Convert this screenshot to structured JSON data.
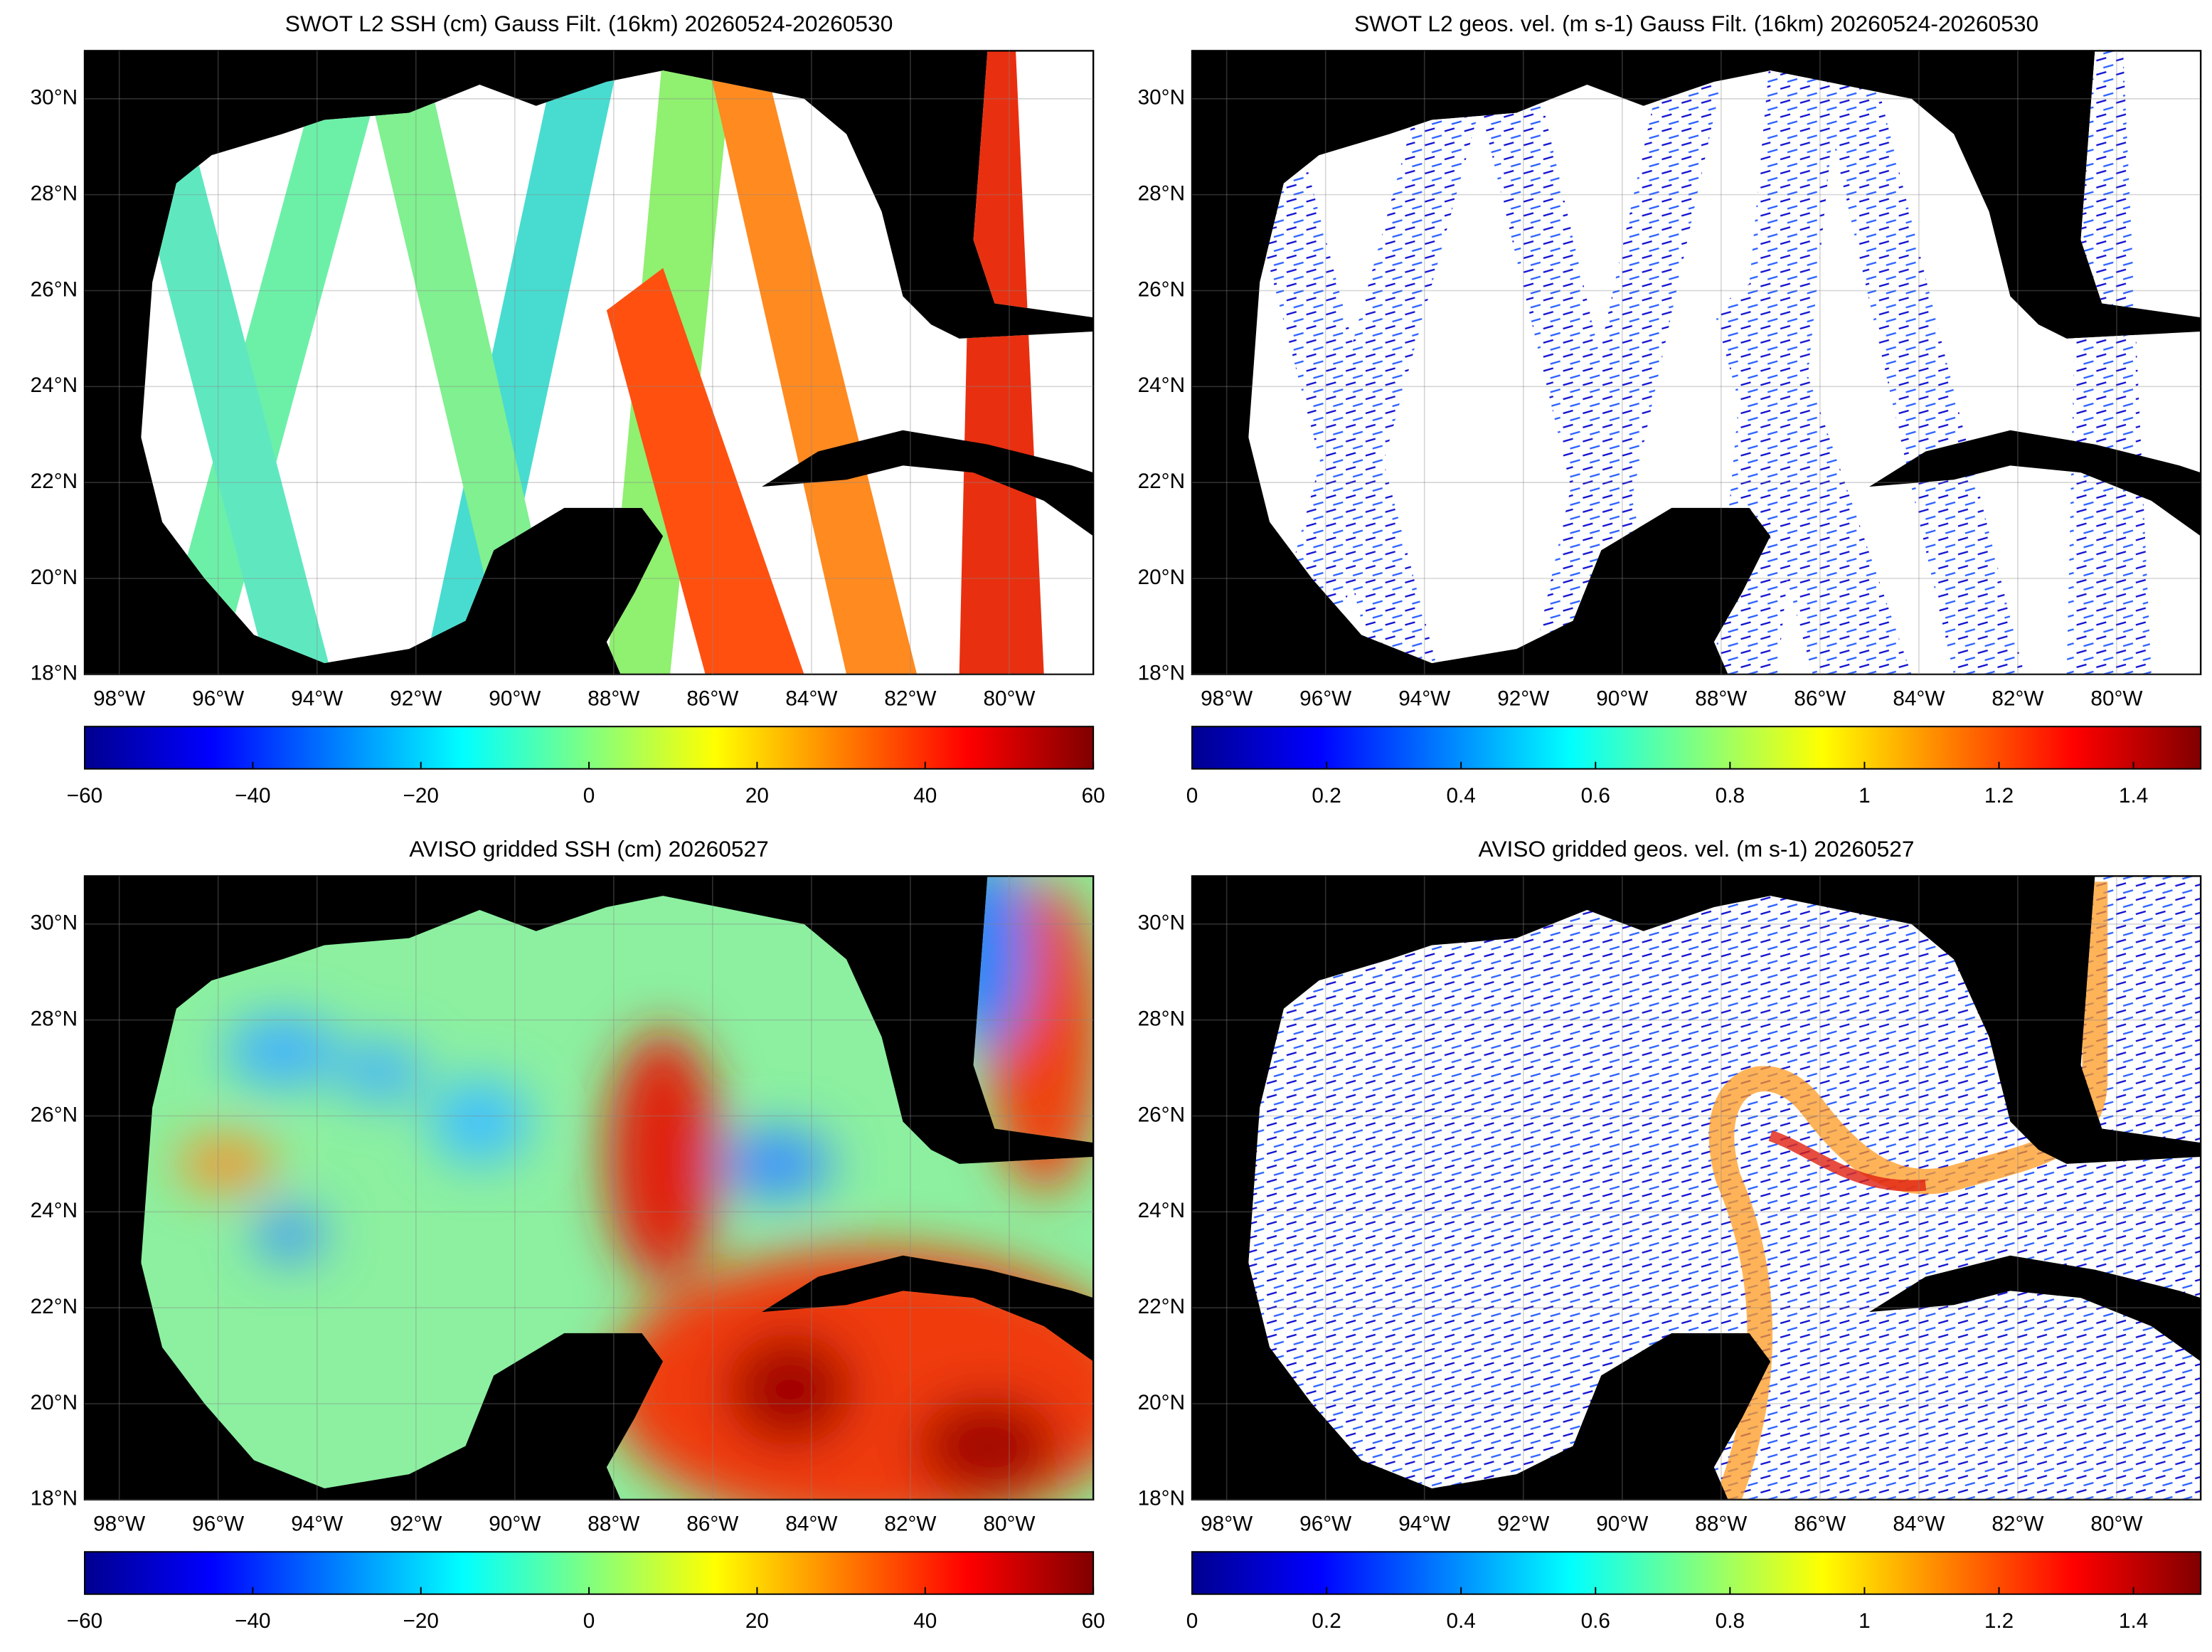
{
  "map": {
    "xlim": [
      -98.7,
      -78.3
    ],
    "ylim": [
      18,
      31
    ],
    "xticks": [
      {
        "value": -98,
        "label": "98°W"
      },
      {
        "value": -96,
        "label": "96°W"
      },
      {
        "value": -94,
        "label": "94°W"
      },
      {
        "value": -92,
        "label": "92°W"
      },
      {
        "value": -90,
        "label": "90°W"
      },
      {
        "value": -88,
        "label": "88°W"
      },
      {
        "value": -86,
        "label": "86°W"
      },
      {
        "value": -84,
        "label": "84°W"
      },
      {
        "value": -82,
        "label": "82°W"
      },
      {
        "value": -80,
        "label": "80°W"
      }
    ],
    "yticks": [
      {
        "value": 18,
        "label": "18°N"
      },
      {
        "value": 20,
        "label": "20°N"
      },
      {
        "value": 22,
        "label": "22°N"
      },
      {
        "value": 24,
        "label": "24°N"
      },
      {
        "value": 26,
        "label": "26°N"
      },
      {
        "value": 28,
        "label": "28°N"
      },
      {
        "value": 30,
        "label": "30°N"
      }
    ]
  },
  "panels": [
    {
      "title": "SWOT L2 SSH (cm) Gauss Filt. (16km) 20260524-20260530",
      "colorbar": {
        "lim": [
          -60,
          60
        ],
        "ticks": [
          {
            "value": -60,
            "label": "−60"
          },
          {
            "value": -40,
            "label": "−40"
          },
          {
            "value": -20,
            "label": "−20"
          },
          0,
          20,
          40,
          60
        ]
      }
    },
    {
      "title": "SWOT L2 geos. vel. (m s-1) Gauss Filt. (16km) 20260524-20260530",
      "colorbar": {
        "lim": [
          0,
          1.5
        ],
        "ticks": [
          0,
          0.2,
          0.4,
          0.6,
          0.8,
          1,
          1.2,
          1.4
        ]
      }
    },
    {
      "title": "AVISO gridded SSH (cm) 20260527",
      "colorbar": {
        "lim": [
          -60,
          60
        ],
        "ticks": [
          {
            "value": -60,
            "label": "−60"
          },
          {
            "value": -40,
            "label": "−40"
          },
          {
            "value": -20,
            "label": "−20"
          },
          0,
          20,
          40,
          60
        ]
      }
    },
    {
      "title": "AVISO gridded geos. vel. (m s-1)  20260527",
      "colorbar": {
        "lim": [
          0,
          1.5
        ],
        "ticks": [
          0,
          0.2,
          0.4,
          0.6,
          0.8,
          1,
          1.2,
          1.4
        ]
      }
    }
  ]
}
